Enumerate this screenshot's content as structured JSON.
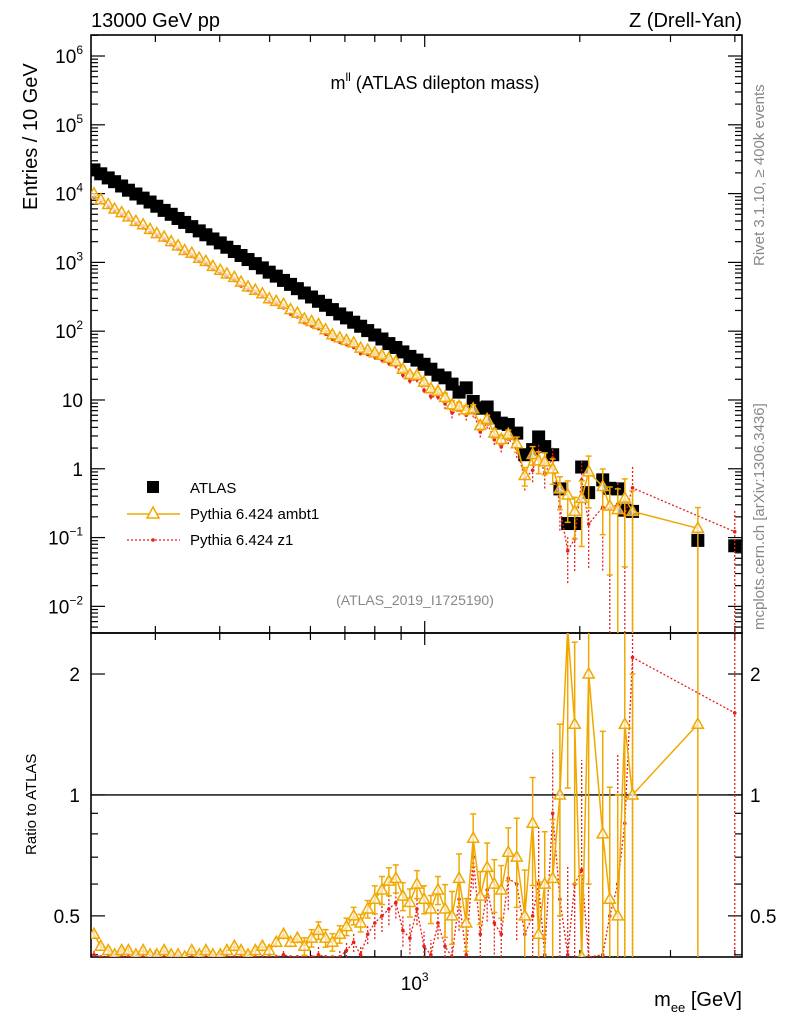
{
  "header": {
    "left": "13000 GeV pp",
    "right": "Z (Drell-Yan)"
  },
  "plot_title": {
    "base": "m",
    "sup": "ll",
    "rest": " (ATLAS dilepton mass)"
  },
  "side_labels": {
    "rivet": "Rivet 3.1.10, ≥ 400k events",
    "mcplots": "mcplots.cern.ch [arXiv:1306.3436]"
  },
  "watermark": "(ATLAS_2019_I1725190)",
  "legend": {
    "atlas": "ATLAS",
    "ambt1": "Pythia 6.424 ambt1",
    "z1": "Pythia 6.424 z1"
  },
  "colors": {
    "atlas": "#000000",
    "ambt1": "#f0a800",
    "z1": "#e8201a"
  },
  "chart_data": {
    "type": "scatter",
    "title": "m^ll (ATLAS dilepton mass)",
    "xlabel": {
      "base": "m",
      "sub": "ee",
      "rest": " [GeV]"
    },
    "ylabel": "Entries / 10 GeV",
    "ratio_ylabel": "Ratio to ATLAS",
    "xscale": "log",
    "xlim": [
      225,
      4130
    ],
    "ylim": [
      0.0041,
      2020000
    ],
    "ratio_ylim": [
      0.395,
      2.53
    ],
    "x_ticks": [
      {
        "value": 1000,
        "base": "10",
        "exp": "3"
      }
    ],
    "y_ticks": [
      {
        "value": 1000000,
        "base": "10",
        "exp": "6"
      },
      {
        "value": 100000,
        "base": "10",
        "exp": "5"
      },
      {
        "value": 10000,
        "base": "10",
        "exp": "4"
      },
      {
        "value": 1000,
        "base": "10",
        "exp": "3"
      },
      {
        "value": 100,
        "base": "10",
        "exp": "2"
      },
      {
        "value": 10,
        "base": "10",
        "exp": ""
      },
      {
        "value": 1,
        "base": "1",
        "exp": ""
      },
      {
        "value": 0.1,
        "base": "10",
        "exp": "−1"
      },
      {
        "value": 0.01,
        "base": "10",
        "exp": "−2"
      }
    ],
    "ratio_ticks": [
      {
        "value": 2,
        "label": "2"
      },
      {
        "value": 1,
        "label": "1"
      },
      {
        "value": 0.5,
        "label": "0.5"
      }
    ],
    "mass": [
      228,
      235,
      243,
      250,
      258,
      266,
      275,
      284,
      293,
      302,
      312,
      322,
      332,
      342,
      353,
      365,
      376,
      388,
      401,
      413,
      427,
      440,
      454,
      469,
      484,
      499,
      515,
      532,
      549,
      566,
      584,
      603,
      622,
      642,
      662,
      684,
      705,
      728,
      751,
      775,
      800,
      826,
      852,
      879,
      907,
      936,
      966,
      997,
      1028,
      1061,
      1095,
      1130,
      1166,
      1204,
      1242,
      1282,
      1322,
      1365,
      1408,
      1453,
      1509,
      1564,
      1620,
      1664,
      1710,
      1772,
      1830,
      1895,
      1955,
      2017,
      2081,
      2216,
      2287,
      2370,
      2446,
      2532,
      3390,
      3998
    ],
    "series": [
      {
        "name": "ATLAS",
        "values": [
          22100,
          19400,
          16900,
          14900,
          12900,
          11200,
          9860,
          8590,
          7540,
          6550,
          5700,
          5000,
          4350,
          3810,
          3310,
          2870,
          2520,
          2190,
          1920,
          1660,
          1440,
          1260,
          1100,
          960,
          832,
          721,
          631,
          547,
          479,
          415,
          359,
          314,
          272,
          238,
          206,
          178,
          156,
          135,
          118,
          102,
          88,
          77,
          66,
          58,
          50,
          43,
          38,
          33,
          28,
          23,
          21,
          17,
          13,
          15,
          9.5,
          7.6,
          7.9,
          5.5,
          4.6,
          4.4,
          3.3,
          1.6,
          1.9,
          2.9,
          2.1,
          1.6,
          0.51,
          0.16,
          0.16,
          1.06,
          0.45,
          0.69,
          0.52,
          0.51,
          0.25,
          0.24,
          0.091,
          0.076
        ]
      },
      {
        "name": "Pythia 6.424 ambt1",
        "ratio_to_atlas": [
          0.45,
          0.42,
          0.41,
          0.4,
          0.41,
          0.41,
          0.4,
          0.41,
          0.4,
          0.4,
          0.41,
          0.4,
          0.4,
          0.39,
          0.41,
          0.4,
          0.41,
          0.4,
          0.4,
          0.41,
          0.42,
          0.41,
          0.4,
          0.41,
          0.42,
          0.41,
          0.43,
          0.45,
          0.43,
          0.44,
          0.42,
          0.44,
          0.46,
          0.44,
          0.43,
          0.45,
          0.47,
          0.5,
          0.48,
          0.52,
          0.55,
          0.58,
          0.61,
          0.62,
          0.56,
          0.54,
          0.6,
          0.55,
          0.52,
          0.58,
          0.52,
          0.5,
          0.62,
          0.48,
          0.78,
          0.56,
          0.66,
          0.6,
          0.58,
          0.72,
          0.7,
          0.5,
          0.85,
          0.45,
          0.6,
          0.62,
          1.0,
          2.6,
          1.5,
          0.35,
          2.0,
          0.8,
          0.55,
          0.5,
          1.5,
          1.0,
          1.5,
          null
        ]
      },
      {
        "name": "Pythia 6.424 z1",
        "ratio_to_atlas": [
          0.4,
          0.38,
          0.38,
          0.37,
          0.37,
          0.38,
          0.37,
          0.37,
          0.36,
          0.37,
          0.37,
          0.36,
          0.36,
          0.36,
          0.37,
          0.36,
          0.37,
          0.36,
          0.36,
          0.37,
          0.38,
          0.36,
          0.36,
          0.37,
          0.38,
          0.37,
          0.39,
          0.4,
          0.37,
          0.39,
          0.37,
          0.38,
          0.4,
          0.38,
          0.37,
          0.39,
          0.41,
          0.43,
          0.4,
          0.45,
          0.48,
          0.5,
          0.52,
          0.54,
          0.46,
          0.44,
          0.52,
          0.42,
          0.4,
          0.48,
          0.42,
          0.38,
          0.55,
          0.4,
          0.7,
          0.45,
          0.58,
          0.48,
          0.45,
          0.62,
          0.6,
          0.45,
          0.5,
          0.6,
          0.4,
          0.9,
          0.55,
          0.4,
          0.6,
          0.65,
          0.35,
          0.4,
          0.5,
          0.6,
          0.85,
          2.2,
          null,
          1.6
        ]
      }
    ],
    "mc_rel_err": [
      0.02,
      0.02,
      0.02,
      0.02,
      0.02,
      0.02,
      0.02,
      0.02,
      0.02,
      0.02,
      0.02,
      0.02,
      0.02,
      0.02,
      0.02,
      0.02,
      0.02,
      0.02,
      0.02,
      0.02,
      0.03,
      0.03,
      0.03,
      0.03,
      0.03,
      0.03,
      0.03,
      0.03,
      0.03,
      0.03,
      0.05,
      0.05,
      0.05,
      0.05,
      0.05,
      0.05,
      0.05,
      0.05,
      0.05,
      0.05,
      0.08,
      0.08,
      0.08,
      0.08,
      0.08,
      0.08,
      0.08,
      0.08,
      0.08,
      0.08,
      0.15,
      0.15,
      0.15,
      0.15,
      0.15,
      0.15,
      0.15,
      0.15,
      0.15,
      0.15,
      0.25,
      0.3,
      0.3,
      0.35,
      0.35,
      0.4,
      0.5,
      0.6,
      0.6,
      0.8,
      0.7,
      0.8,
      0.9,
      1.0,
      0.9,
      1.0,
      1.0,
      1.0
    ],
    "legend_position": "center-left"
  }
}
